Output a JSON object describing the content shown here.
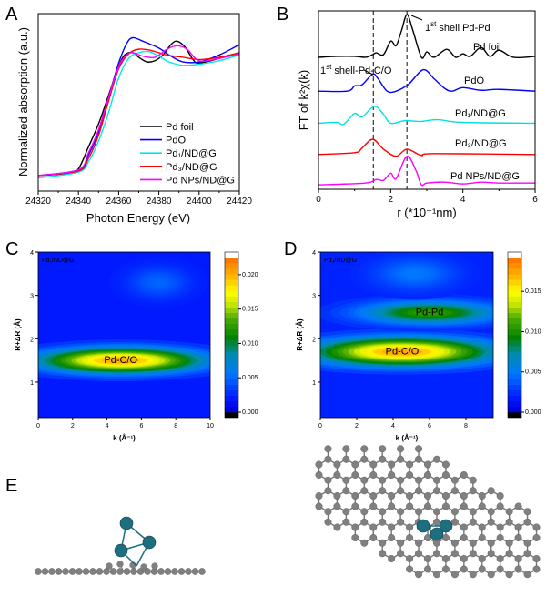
{
  "panels": {
    "a": "A",
    "b": "B",
    "c": "C",
    "d": "D",
    "e": "E"
  },
  "colors": {
    "pd_atom": "#1d6f80",
    "c_atom": "#808080"
  },
  "chart_data": [
    {
      "id": "A",
      "type": "line",
      "xlabel": "Photon Energy (eV)",
      "ylabel": "Normalized absorption (a.u.)",
      "xlim": [
        24320,
        24420
      ],
      "ylim": [
        -0.135,
        1.41
      ],
      "xticks": [
        "24320",
        "24340",
        "24360",
        "24380",
        "24400",
        "24420"
      ],
      "legend_position": "bottom-right",
      "grid": false,
      "series": [
        {
          "name": "Pd foil",
          "color": "#000000",
          "points": [
            [
              24320,
              0
            ],
            [
              24335,
              0.02
            ],
            [
              24340,
              0.06
            ],
            [
              24345,
              0.25
            ],
            [
              24350,
              0.45
            ],
            [
              24355,
              0.7
            ],
            [
              24360,
              0.95
            ],
            [
              24363,
              1.05
            ],
            [
              24367,
              1.07
            ],
            [
              24370,
              1.03
            ],
            [
              24374,
              0.99
            ],
            [
              24378,
              1.0
            ],
            [
              24382,
              1.05
            ],
            [
              24386,
              1.14
            ],
            [
              24389,
              1.17
            ],
            [
              24393,
              1.12
            ],
            [
              24397,
              1.01
            ],
            [
              24400,
              0.98
            ],
            [
              24410,
              1.02
            ],
            [
              24420,
              1.07
            ]
          ]
        },
        {
          "name": "PdO",
          "color": "#0000ff",
          "points": [
            [
              24320,
              0
            ],
            [
              24340,
              0.05
            ],
            [
              24345,
              0.18
            ],
            [
              24350,
              0.38
            ],
            [
              24355,
              0.68
            ],
            [
              24360,
              0.98
            ],
            [
              24364,
              1.15
            ],
            [
              24367,
              1.2
            ],
            [
              24372,
              1.17
            ],
            [
              24380,
              1.11
            ],
            [
              24386,
              1.04
            ],
            [
              24392,
              0.99
            ],
            [
              24400,
              0.99
            ],
            [
              24410,
              1.05
            ],
            [
              24420,
              1.14
            ]
          ]
        },
        {
          "name": "Pd₁/ND@G",
          "color": "#00e8e8",
          "points": [
            [
              24320,
              -0.02
            ],
            [
              24340,
              0.03
            ],
            [
              24345,
              0.12
            ],
            [
              24350,
              0.3
            ],
            [
              24355,
              0.55
            ],
            [
              24360,
              0.85
            ],
            [
              24365,
              1.02
            ],
            [
              24370,
              1.07
            ],
            [
              24375,
              1.08
            ],
            [
              24380,
              1.04
            ],
            [
              24385,
              0.99
            ],
            [
              24392,
              0.96
            ],
            [
              24400,
              0.97
            ],
            [
              24410,
              1.0
            ],
            [
              24420,
              1.05
            ]
          ]
        },
        {
          "name": "Pd₃/ND@G",
          "color": "#ff0000",
          "points": [
            [
              24320,
              0
            ],
            [
              24340,
              0.04
            ],
            [
              24345,
              0.15
            ],
            [
              24350,
              0.35
            ],
            [
              24355,
              0.65
            ],
            [
              24360,
              0.93
            ],
            [
              24365,
              1.06
            ],
            [
              24370,
              1.1
            ],
            [
              24376,
              1.09
            ],
            [
              24384,
              1.05
            ],
            [
              24392,
              1.03
            ],
            [
              24400,
              1.01
            ],
            [
              24410,
              1.03
            ],
            [
              24420,
              1.07
            ]
          ]
        },
        {
          "name": "Pd NPs/ND@G",
          "color": "#ff00ff",
          "points": [
            [
              24320,
              0
            ],
            [
              24340,
              0.05
            ],
            [
              24345,
              0.2
            ],
            [
              24350,
              0.4
            ],
            [
              24355,
              0.68
            ],
            [
              24360,
              0.95
            ],
            [
              24364,
              1.05
            ],
            [
              24367,
              1.07
            ],
            [
              24372,
              1.04
            ],
            [
              24378,
              1.03
            ],
            [
              24384,
              1.1
            ],
            [
              24389,
              1.13
            ],
            [
              24394,
              1.1
            ],
            [
              24400,
              1.0
            ],
            [
              24410,
              1.02
            ],
            [
              24420,
              1.06
            ]
          ]
        }
      ]
    },
    {
      "id": "B",
      "type": "line",
      "xlabel": "r (*10⁻¹nm)",
      "ylabel": "FT of k²χ(k)",
      "xlim": [
        0,
        6
      ],
      "ylim": [
        0,
        10
      ],
      "xticks": [
        "0",
        "2",
        "4",
        "6"
      ],
      "reference_lines_x": [
        1.52,
        2.45
      ],
      "annotations": [
        {
          "num": "1",
          "sup": "st",
          "text": " shell Pd-Pd"
        },
        {
          "num": "1",
          "sup": "st",
          "text": " shell-Pd-C/O"
        }
      ],
      "series": [
        {
          "name": "Pd foil",
          "color": "#000000",
          "offset": 7.4,
          "points": [
            [
              0,
              0
            ],
            [
              0.5,
              0.05
            ],
            [
              1,
              0.05
            ],
            [
              1.3,
              0
            ],
            [
              1.5,
              0.15
            ],
            [
              1.6,
              0.25
            ],
            [
              1.8,
              0.15
            ],
            [
              2.0,
              0.9
            ],
            [
              2.15,
              0.65
            ],
            [
              2.3,
              1.5
            ],
            [
              2.45,
              2.4
            ],
            [
              2.6,
              1.6
            ],
            [
              2.85,
              0
            ],
            [
              3.0,
              0.3
            ],
            [
              3.2,
              0
            ],
            [
              3.55,
              0.45
            ],
            [
              3.8,
              0
            ],
            [
              4.0,
              0.2
            ],
            [
              4.2,
              0.05
            ],
            [
              4.5,
              0.55
            ],
            [
              4.75,
              0.05
            ],
            [
              5.0,
              0.4
            ],
            [
              5.4,
              0
            ],
            [
              6,
              0.05
            ]
          ]
        },
        {
          "name": "PdO",
          "color": "#0000ff",
          "offset": 5.5,
          "points": [
            [
              0,
              0
            ],
            [
              0.8,
              0
            ],
            [
              1.0,
              0.3
            ],
            [
              1.2,
              0.35
            ],
            [
              1.5,
              0.95
            ],
            [
              1.65,
              0.7
            ],
            [
              1.9,
              0
            ],
            [
              2.15,
              0
            ],
            [
              2.5,
              0.4
            ],
            [
              2.9,
              1.2
            ],
            [
              3.2,
              0.7
            ],
            [
              3.5,
              0.15
            ],
            [
              3.7,
              0
            ],
            [
              4,
              0.2
            ],
            [
              4.5,
              0.05
            ],
            [
              5,
              0.1
            ],
            [
              6,
              0
            ]
          ]
        },
        {
          "name": "Pd₁/ND@G",
          "color": "#00e0e0",
          "offset": 3.7,
          "points": [
            [
              0,
              0
            ],
            [
              0.5,
              0.05
            ],
            [
              0.7,
              -0.05
            ],
            [
              1.0,
              0.55
            ],
            [
              1.2,
              0.35
            ],
            [
              1.55,
              0.95
            ],
            [
              1.8,
              0.5
            ],
            [
              2.0,
              0
            ],
            [
              2.4,
              0.15
            ],
            [
              2.8,
              0.1
            ],
            [
              3.3,
              0.2
            ],
            [
              4,
              0.05
            ],
            [
              6,
              0
            ]
          ]
        },
        {
          "name": "Pd₃/ND@G",
          "color": "#ff0000",
          "offset": 1.95,
          "points": [
            [
              0,
              0
            ],
            [
              1,
              0.1
            ],
            [
              1.2,
              0.35
            ],
            [
              1.5,
              0.85
            ],
            [
              1.8,
              0.3
            ],
            [
              2.15,
              -0.1
            ],
            [
              2.45,
              0.3
            ],
            [
              2.85,
              -0.05
            ],
            [
              3.2,
              0.05
            ],
            [
              6,
              0
            ]
          ]
        },
        {
          "name": "Pd NPs/ND@G",
          "color": "#ff00ff",
          "offset": 0.25,
          "points": [
            [
              0,
              0
            ],
            [
              1.3,
              0.1
            ],
            [
              1.6,
              0.3
            ],
            [
              1.8,
              0.25
            ],
            [
              2.0,
              0.65
            ],
            [
              2.15,
              0.35
            ],
            [
              2.45,
              1.6
            ],
            [
              2.7,
              0.8
            ],
            [
              2.85,
              0
            ],
            [
              3.0,
              0.1
            ],
            [
              3.5,
              0.15
            ],
            [
              4,
              0.05
            ],
            [
              4.5,
              0.15
            ],
            [
              5,
              0.1
            ],
            [
              6,
              0.1
            ]
          ]
        }
      ]
    },
    {
      "id": "C",
      "type": "heatmap",
      "title": "Pd₁/ND@G",
      "xlabel": "k (Å⁻¹)",
      "ylabel": "R+ΔR (Å)",
      "xlim": [
        0,
        10
      ],
      "ylim": [
        0.18,
        4
      ],
      "xticks": [
        "0",
        "2",
        "4",
        "6",
        "8",
        "10"
      ],
      "yticks": [
        "1",
        "2",
        "3",
        "4"
      ],
      "colorbar": {
        "range": [
          0,
          0.0225
        ],
        "ticks": [
          "0.000",
          "0.005",
          "0.010",
          "0.015",
          "0.020"
        ]
      },
      "background": 0.002,
      "features": [
        {
          "label": "Pd-C/O",
          "k": 4.8,
          "R": 1.5,
          "value": 0.021,
          "sk": 3.2,
          "sR": 0.2
        },
        {
          "label": "",
          "k": 7,
          "R": 3.3,
          "value": 0.005,
          "sk": 1.2,
          "sR": 0.25
        }
      ]
    },
    {
      "id": "D",
      "type": "heatmap",
      "title": "Pd₃/ND@G",
      "xlabel": "k (Å⁻¹)",
      "ylabel": "R+ΔR (Å)",
      "xlim": [
        0,
        9.5
      ],
      "ylim": [
        0.18,
        4
      ],
      "xticks": [
        "0",
        "2",
        "4",
        "6",
        "8"
      ],
      "yticks": [
        "1",
        "2",
        "3",
        "4"
      ],
      "colorbar": {
        "range": [
          0,
          0.0192
        ],
        "ticks": [
          "0.000",
          "0.005",
          "0.010",
          "0.015"
        ]
      },
      "background": 0.002,
      "features": [
        {
          "label": "Pd-C/O",
          "k": 4.5,
          "R": 1.7,
          "value": 0.018,
          "sk": 3.3,
          "sR": 0.22
        },
        {
          "label": "Pd-Pd",
          "k": 6,
          "R": 2.6,
          "value": 0.011,
          "sk": 2.6,
          "sR": 0.18
        },
        {
          "label": "",
          "k": 5.2,
          "R": 3.5,
          "value": 0.005,
          "sk": 1.5,
          "sR": 0.25
        }
      ]
    }
  ]
}
